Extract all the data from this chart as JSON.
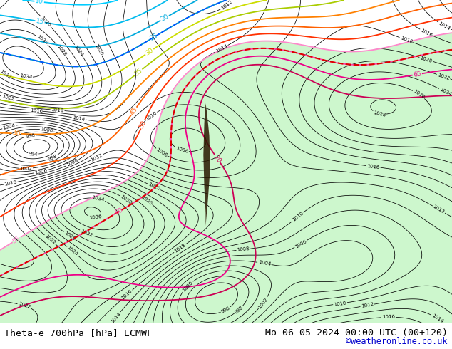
{
  "title_left": "Theta-e 700hPa [hPa] ECMWF",
  "title_right": "Mo 06-05-2024 00:00 UTC (00+120)",
  "copyright": "©weatheronline.co.uk",
  "bg_color": "#ffffff",
  "title_fontsize": 9.5,
  "copyright_color": "#0000cc",
  "fig_width": 6.34,
  "fig_height": 4.9
}
